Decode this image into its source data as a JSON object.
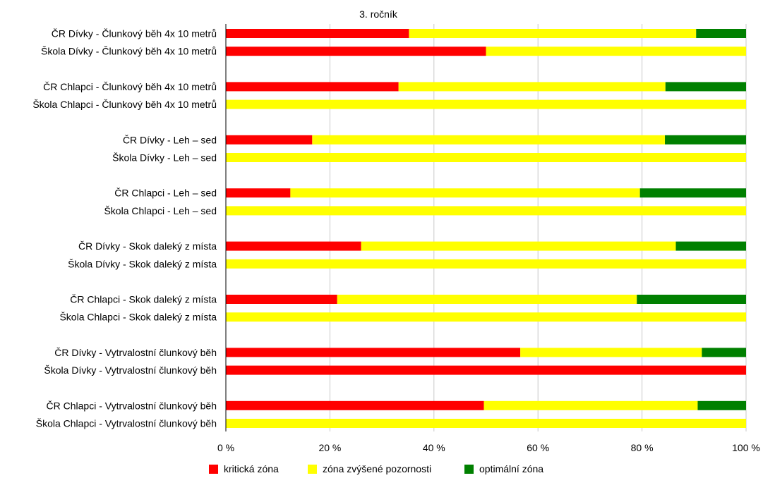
{
  "chart_data": {
    "type": "bar",
    "orientation": "horizontal",
    "stacked": "percent",
    "title": "3. ročník",
    "categories": [
      "ČR Dívky - Člunkový běh 4x 10 metrů",
      "Škola Dívky - Člunkový běh 4x 10 metrů",
      "ČR Chlapci - Člunkový běh 4x 10 metrů",
      "Škola Chlapci - Člunkový běh 4x 10 metrů",
      "ČR Dívky - Leh – sed",
      "Škola Dívky - Leh – sed",
      "ČR Chlapci - Leh – sed",
      "Škola Chlapci - Leh – sed",
      "ČR Dívky - Skok daleký z místa",
      "Škola Dívky - Skok daleký z místa",
      "ČR Chlapci - Skok daleký z místa",
      "Škola Chlapci - Skok daleký z místa",
      "ČR Dívky - Vytrvalostní člunkový běh",
      "Škola Dívky - Vytrvalostní člunkový běh",
      "ČR Chlapci - Vytrvalostní člunkový běh",
      "Škola Chlapci - Vytrvalostní člunkový běh"
    ],
    "series": [
      {
        "name": "kritická zóna",
        "color": "#ff0000",
        "values": [
          35.2,
          50.0,
          33.2,
          0,
          16.6,
          0,
          12.4,
          0,
          26.0,
          0,
          21.4,
          0,
          56.6,
          100,
          49.6,
          0
        ]
      },
      {
        "name": "zóna zvýšené pozornosti",
        "color": "#ffff00",
        "values": [
          55.2,
          50.0,
          51.3,
          100,
          67.8,
          100,
          67.2,
          100,
          60.5,
          100,
          57.6,
          100,
          34.9,
          0,
          41.1,
          100
        ]
      },
      {
        "name": "optimální zóna",
        "color": "#008000",
        "values": [
          9.6,
          0,
          15.5,
          0,
          15.6,
          0,
          20.4,
          0,
          13.5,
          0,
          21.0,
          0,
          8.5,
          0,
          9.3,
          0
        ]
      }
    ],
    "xlim": [
      0,
      100
    ],
    "xticks": [
      "0 %",
      "20 %",
      "40 %",
      "60 %",
      "80 %",
      "100 %"
    ],
    "grid": true,
    "legend_position": "bottom"
  }
}
